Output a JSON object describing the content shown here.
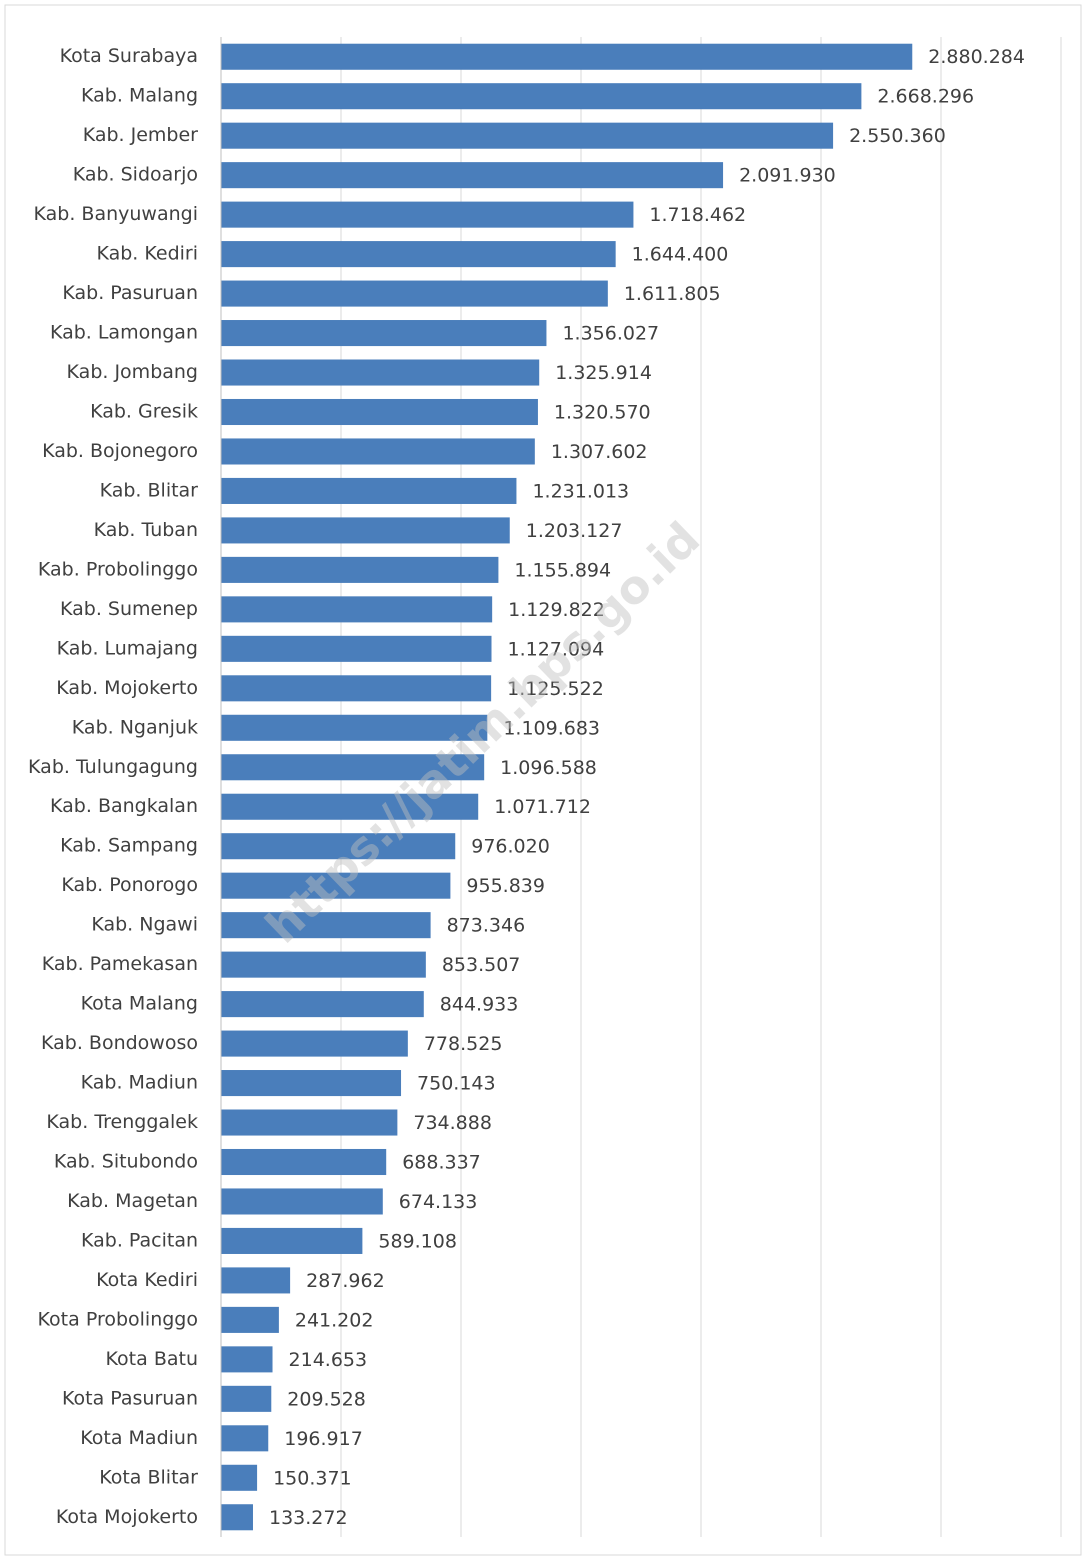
{
  "chart_data": {
    "type": "bar",
    "orientation": "horizontal",
    "watermark": "https://jatim.bps.go.id",
    "categories": [
      "Kota Surabaya",
      "Kab. Malang",
      "Kab. Jember",
      "Kab. Sidoarjo",
      "Kab. Banyuwangi",
      "Kab. Kediri",
      "Kab. Pasuruan",
      "Kab. Lamongan",
      "Kab. Jombang",
      "Kab. Gresik",
      "Kab. Bojonegoro",
      "Kab. Blitar",
      "Kab. Tuban",
      "Kab. Probolinggo",
      "Kab. Sumenep",
      "Kab. Lumajang",
      "Kab. Mojokerto",
      "Kab. Nganjuk",
      "Kab. Tulungagung",
      "Kab. Bangkalan",
      "Kab. Sampang",
      "Kab. Ponorogo",
      "Kab. Ngawi",
      "Kab. Pamekasan",
      "Kota Malang",
      "Kab. Bondowoso",
      "Kab. Madiun",
      "Kab. Trenggalek",
      "Kab. Situbondo",
      "Kab. Magetan",
      "Kab. Pacitan",
      "Kota Kediri",
      "Kota Probolinggo",
      "Kota Batu",
      "Kota Pasuruan",
      "Kota Madiun",
      "Kota Blitar",
      "Kota Mojokerto"
    ],
    "values": [
      2880284,
      2668296,
      2550360,
      2091930,
      1718462,
      1644400,
      1611805,
      1356027,
      1325914,
      1320570,
      1307602,
      1231013,
      1203127,
      1155894,
      1129822,
      1127094,
      1125522,
      1109683,
      1096588,
      1071712,
      976020,
      955839,
      873346,
      853507,
      844933,
      778525,
      750143,
      734888,
      688337,
      674133,
      589108,
      287962,
      241202,
      214653,
      209528,
      196917,
      150371,
      133272
    ],
    "value_labels": [
      "2.880.284",
      "2.668.296",
      "2.550.360",
      "2.091.930",
      "1.718.462",
      "1.644.400",
      "1.611.805",
      "1.356.027",
      "1.325.914",
      "1.320.570",
      "1.307.602",
      "1.231.013",
      "1.203.127",
      "1.155.894",
      "1.129.822",
      "1.127.094",
      "1.125.522",
      "1.109.683",
      "1.096.588",
      "1.071.712",
      "976.020",
      "955.839",
      "873.346",
      "853.507",
      "844.933",
      "778.525",
      "750.143",
      "734.888",
      "688.337",
      "674.133",
      "589.108",
      "287.962",
      "241.202",
      "214.653",
      "209.528",
      "196.917",
      "150.371",
      "133.272"
    ],
    "color": "#4a7ebb",
    "xlim": [
      0,
      3500000
    ],
    "xticks": [
      0,
      500000,
      1000000,
      1500000,
      2000000,
      2500000,
      3000000,
      3500000
    ],
    "grid": true
  }
}
